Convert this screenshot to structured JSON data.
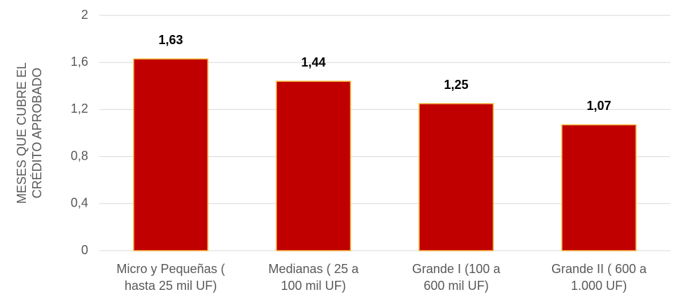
{
  "chart_data": {
    "type": "bar",
    "y_label": [
      "MESES QUE CUBRE EL",
      "CRÉDITO APROBADO"
    ],
    "categories": [
      [
        "Micro y Pequeñas (",
        "hasta 25 mil UF)"
      ],
      [
        "Medianas ( 25 a",
        "100 mil UF)"
      ],
      [
        "Grande I (100 a",
        "600 mil UF)"
      ],
      [
        "Grande II ( 600 a",
        "1.000 UF)"
      ]
    ],
    "values": [
      1.63,
      1.44,
      1.25,
      1.07
    ],
    "value_labels": [
      "1,63",
      "1,44",
      "1,25",
      "1,07"
    ],
    "color": "#c00000",
    "ylim": [
      0,
      2
    ],
    "yticks": [
      0,
      {
        "value": 0.4,
        "label": "0,4"
      },
      {
        "value": 0.8,
        "label": "0,8"
      },
      {
        "value": 1.2,
        "label": "1,2"
      },
      {
        "value": 1.6,
        "label": "1,6"
      },
      2
    ],
    "grid": true
  }
}
